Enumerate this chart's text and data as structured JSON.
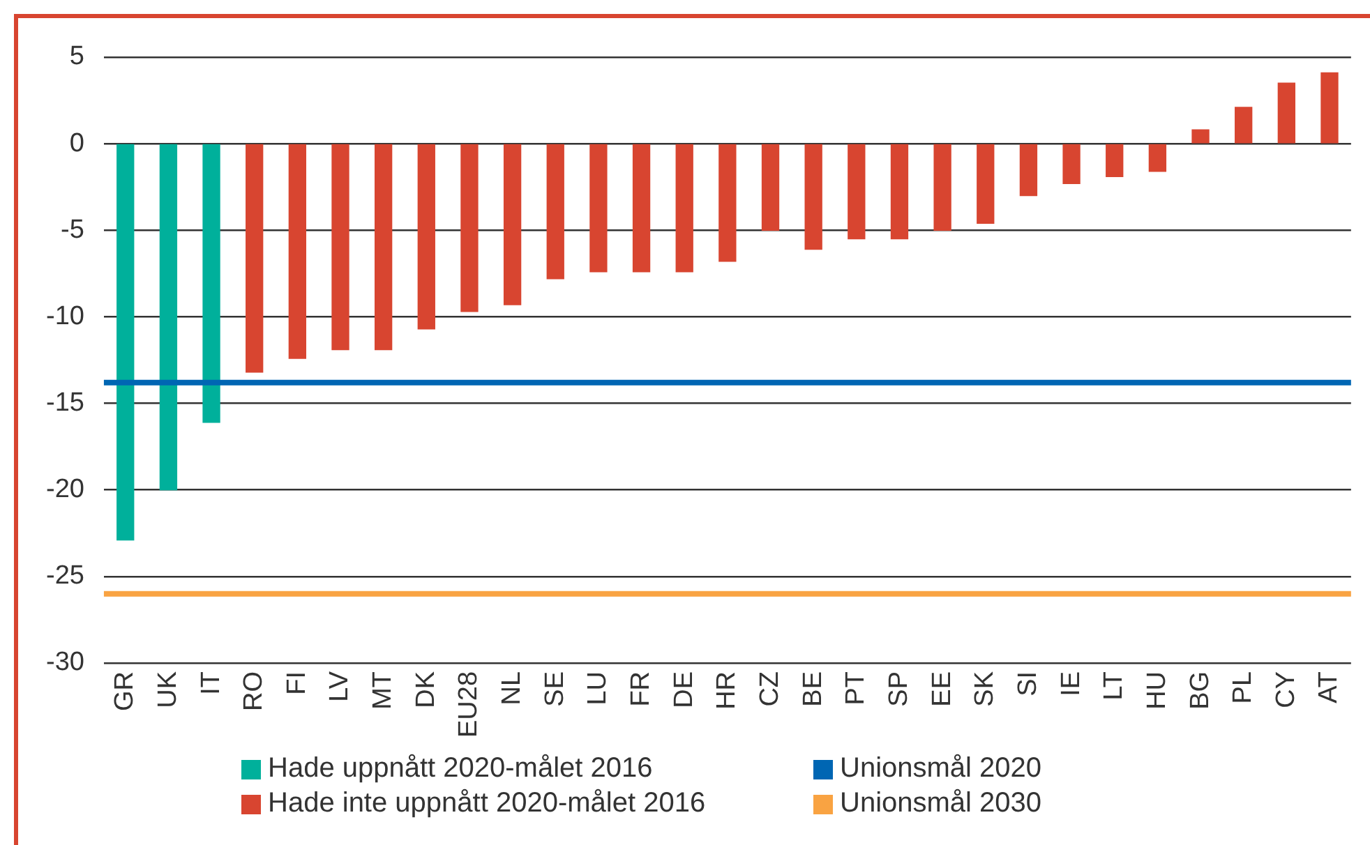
{
  "chart_data": {
    "type": "bar",
    "categories": [
      "GR",
      "UK",
      "IT",
      "RO",
      "FI",
      "LV",
      "MT",
      "DK",
      "EU28",
      "NL",
      "SE",
      "LU",
      "FR",
      "DE",
      "HR",
      "CZ",
      "BE",
      "PT",
      "SP",
      "EE",
      "SK",
      "SI",
      "IE",
      "LT",
      "HU",
      "BG",
      "PL",
      "CY",
      "AT"
    ],
    "series": [
      {
        "name": "Hade uppnått 2020-målet 2016",
        "color": "#00b09b",
        "values": [
          -22.9,
          -20.0,
          -16.1,
          null,
          null,
          null,
          null,
          null,
          null,
          null,
          null,
          null,
          null,
          null,
          null,
          null,
          null,
          null,
          null,
          null,
          null,
          null,
          null,
          null,
          null,
          null,
          null,
          null,
          null
        ]
      },
      {
        "name": "Hade inte uppnått 2020-målet 2016",
        "color": "#d84530",
        "values": [
          null,
          null,
          null,
          -13.2,
          -12.4,
          -11.9,
          -11.9,
          -10.7,
          -9.7,
          -9.3,
          -7.8,
          -7.4,
          -7.4,
          -7.4,
          -6.8,
          -5.0,
          -6.1,
          -5.5,
          -5.5,
          -5.0,
          -4.6,
          -3.0,
          -2.3,
          -1.9,
          -1.6,
          0.8,
          2.1,
          3.5,
          4.1
        ]
      }
    ],
    "ref_lines": [
      {
        "axis": "y",
        "value": -13.8,
        "label": "Unionsmål 2020",
        "color": "#0066b3"
      },
      {
        "axis": "y",
        "value": -26,
        "label": "Unionsmål 2030",
        "color": "#f9a342"
      }
    ],
    "ylim": [
      -30,
      5
    ],
    "yticks": [
      -30,
      -25,
      -20,
      -15,
      -10,
      -5,
      0,
      5
    ],
    "grid": "y",
    "legend": "bottom"
  }
}
